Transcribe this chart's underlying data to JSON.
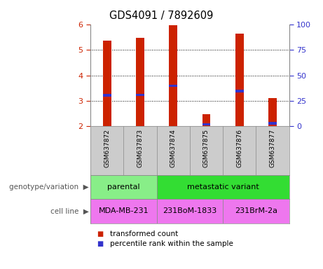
{
  "title": "GDS4091 / 7892609",
  "samples": [
    "GSM637872",
    "GSM637873",
    "GSM637874",
    "GSM637875",
    "GSM637876",
    "GSM637877"
  ],
  "transformed_counts": [
    5.35,
    5.48,
    5.95,
    2.47,
    5.63,
    3.12
  ],
  "percentile_ranks": [
    3.22,
    3.23,
    3.58,
    2.08,
    3.38,
    2.12
  ],
  "ylim": [
    2.0,
    6.0
  ],
  "yticks": [
    2,
    3,
    4,
    5,
    6
  ],
  "right_yticks": [
    0,
    25,
    50,
    75,
    100
  ],
  "right_ylim": [
    0,
    100
  ],
  "bar_color": "#cc2200",
  "marker_color": "#3333cc",
  "plot_bg": "#ffffff",
  "genotype_groups": [
    {
      "label": "parental",
      "span": [
        0,
        2
      ],
      "color": "#88ee88"
    },
    {
      "label": "metastatic variant",
      "span": [
        2,
        6
      ],
      "color": "#33dd33"
    }
  ],
  "cell_line_groups": [
    {
      "label": "MDA-MB-231",
      "span": [
        0,
        2
      ],
      "color": "#ee77ee"
    },
    {
      "label": "231BoM-1833",
      "span": [
        2,
        4
      ],
      "color": "#ee77ee"
    },
    {
      "label": "231BrM-2a",
      "span": [
        4,
        6
      ],
      "color": "#ee77ee"
    }
  ],
  "legend_items": [
    {
      "label": "transformed count",
      "color": "#cc2200"
    },
    {
      "label": "percentile rank within the sample",
      "color": "#3333cc"
    }
  ],
  "left_label_color": "#cc2200",
  "right_label_color": "#3333cc",
  "genotype_label": "genotype/variation",
  "cell_line_label": "cell line",
  "sample_bg": "#cccccc",
  "bar_width": 0.25
}
